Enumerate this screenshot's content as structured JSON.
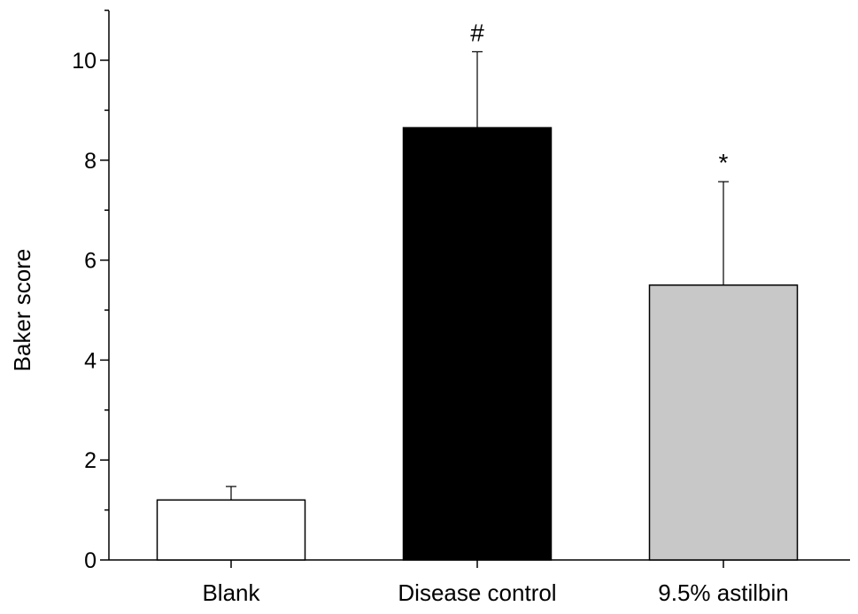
{
  "chart_data": {
    "type": "bar",
    "title": "",
    "xlabel": "",
    "ylabel": "Baker score",
    "ylim": [
      0,
      11
    ],
    "yticks": [
      0,
      2,
      4,
      6,
      8,
      10
    ],
    "categories": [
      "Blank",
      "Disease control",
      "9.5% astilbin"
    ],
    "values": [
      1.2,
      8.65,
      5.5
    ],
    "errors": [
      0.27,
      1.52,
      2.07
    ],
    "annotations": [
      "",
      "#",
      "*"
    ],
    "colors": [
      "#ffffff",
      "#000000",
      "#c8c8c8"
    ],
    "grid": false,
    "legend": "none"
  }
}
